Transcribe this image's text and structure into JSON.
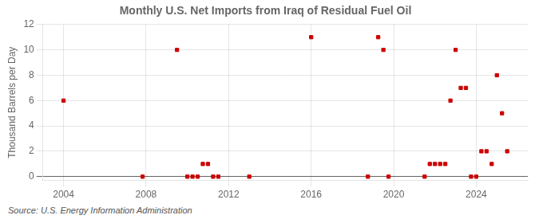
{
  "chart_data": {
    "type": "scatter",
    "title": "Monthly U.S. Net Imports from Iraq of Residual Fuel Oil",
    "ylabel": "Thousand Barrels per Day",
    "source": "Source: U.S. Energy Information Administration",
    "color": "#cc0000",
    "marker": "square",
    "x": [
      2004.0,
      2007.83,
      2009.5,
      2010.0,
      2010.25,
      2010.5,
      2010.75,
      2011.0,
      2011.25,
      2011.5,
      2013.0,
      2016.0,
      2018.75,
      2019.25,
      2019.5,
      2019.75,
      2021.5,
      2021.75,
      2022.0,
      2022.25,
      2022.5,
      2022.75,
      2023.0,
      2023.25,
      2023.5,
      2023.75,
      2024.0,
      2024.25,
      2024.5,
      2024.75,
      2025.0,
      2025.25,
      2025.5
    ],
    "values": [
      6,
      0,
      10,
      0,
      0,
      0,
      1,
      1,
      0,
      0,
      0,
      11,
      0,
      11,
      10,
      0,
      0,
      1,
      1,
      1,
      1,
      6,
      10,
      7,
      7,
      0,
      0,
      2,
      2,
      1,
      8,
      5,
      2
    ],
    "xlim": [
      2003.0,
      2026.5
    ],
    "ylim": [
      -0.3,
      12
    ],
    "xticks": [
      2004,
      2008,
      2012,
      2016,
      2020,
      2024
    ],
    "yticks": [
      0,
      2,
      4,
      6,
      8,
      10,
      12
    ],
    "grid": true
  }
}
